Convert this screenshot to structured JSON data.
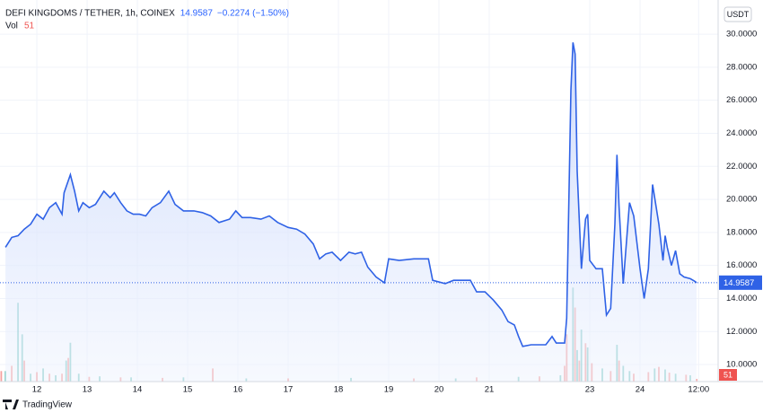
{
  "chart_data": {
    "type": "area",
    "title": "DEFI KINGDOMS / TETHER, 1h, COINEX",
    "change_label": "−0.2274 (−1.50%)",
    "currency": "USDT",
    "brand": "TradingView",
    "color": "#2f62e6",
    "fill": "#dbe5fd",
    "grid": true,
    "x": [
      -15,
      -12,
      -9,
      -6,
      -3,
      0,
      3,
      6,
      9,
      12,
      13,
      16,
      18,
      20,
      22,
      25,
      28,
      32,
      35,
      37,
      40,
      43,
      46,
      49,
      52,
      55,
      59,
      63,
      66,
      70,
      75,
      79,
      83,
      87,
      92,
      95,
      98,
      102,
      107,
      111,
      115,
      120,
      124,
      128,
      132,
      135,
      138,
      141,
      145,
      149,
      152,
      155,
      158,
      162,
      166,
      168,
      173,
      180,
      187,
      189,
      195,
      199,
      203,
      207,
      210,
      214,
      218,
      222,
      225,
      228,
      230,
      232,
      236,
      240,
      243,
      246,
      248,
      252,
      253,
      255,
      256,
      257,
      258,
      260,
      262,
      263,
      264,
      267,
      270,
      272,
      274,
      276,
      277,
      278,
      280,
      282,
      283,
      285,
      288,
      290,
      292,
      294,
      297,
      299,
      300,
      301,
      303,
      305,
      307,
      309,
      312,
      314,
      315
    ],
    "values": [
      17.1,
      17.7,
      17.8,
      18.2,
      18.5,
      19.1,
      18.8,
      19.5,
      19.8,
      19.1,
      20.4,
      21.5,
      20.5,
      19.3,
      19.8,
      19.5,
      19.7,
      20.5,
      20.1,
      20.4,
      19.8,
      19.3,
      19.1,
      19.1,
      19.0,
      19.5,
      19.8,
      20.5,
      19.7,
      19.3,
      19.3,
      19.2,
      19.0,
      18.6,
      18.8,
      19.3,
      18.9,
      18.9,
      18.8,
      19.0,
      18.6,
      18.3,
      18.2,
      17.9,
      17.3,
      16.4,
      16.7,
      16.8,
      16.3,
      16.8,
      16.7,
      16.8,
      15.9,
      15.3,
      14.95,
      16.4,
      16.3,
      16.4,
      16.4,
      15.1,
      14.9,
      15.1,
      15.1,
      15.1,
      14.4,
      14.4,
      13.9,
      13.3,
      12.6,
      12.4,
      11.7,
      11.1,
      11.2,
      11.2,
      11.2,
      11.7,
      11.3,
      11.3,
      12.8,
      26.6,
      29.5,
      28.8,
      21.7,
      15.8,
      18.8,
      19.1,
      16.3,
      15.8,
      15.8,
      13.0,
      13.4,
      18.5,
      22.7,
      19.6,
      14.9,
      18.2,
      19.8,
      19.0,
      15.8,
      14.0,
      15.8,
      20.9,
      18.5,
      16.3,
      17.8,
      17.1,
      16.0,
      16.9,
      15.5,
      15.3,
      15.2,
      15.05,
      14.9587
    ],
    "xlim": [
      -17.6,
      325.3
    ],
    "xticks": [
      {
        "value": 0,
        "label": "12"
      },
      {
        "value": 24,
        "label": "13"
      },
      {
        "value": 48,
        "label": "14"
      },
      {
        "value": 72,
        "label": "15"
      },
      {
        "value": 96,
        "label": "16"
      },
      {
        "value": 120,
        "label": "17"
      },
      {
        "value": 144,
        "label": "18"
      },
      {
        "value": 168,
        "label": "19"
      },
      {
        "value": 192,
        "label": "20"
      },
      {
        "value": 216,
        "label": "21"
      },
      {
        "value": 264,
        "label": "23"
      },
      {
        "value": 288,
        "label": "24"
      },
      {
        "value": 316,
        "label": "12:00"
      }
    ],
    "ylim": [
      8.97,
      32.07
    ],
    "yticks": [
      {
        "value": 10,
        "label": "10.0000"
      },
      {
        "value": 12,
        "label": "12.0000"
      },
      {
        "value": 14,
        "label": "14.0000"
      },
      {
        "value": 16,
        "label": "16.0000"
      },
      {
        "value": 18,
        "label": "18.0000"
      },
      {
        "value": 20,
        "label": "20.0000"
      },
      {
        "value": 22,
        "label": "22.0000"
      },
      {
        "value": 24,
        "label": "24.0000"
      },
      {
        "value": 26,
        "label": "26.0000"
      },
      {
        "value": 28,
        "label": "28.0000"
      },
      {
        "value": 30,
        "label": "30.0000"
      }
    ],
    "volume": {
      "label": "Vol",
      "vlim": [
        0,
        2000
      ],
      "up": {
        "color": "#26a69a",
        "x": [
          -15,
          -9,
          -7,
          -3,
          3,
          9,
          14,
          16,
          20,
          30,
          45,
          70,
          100,
          150,
          200,
          230,
          250,
          256,
          258,
          260,
          263,
          270,
          277,
          280,
          283,
          295,
          300,
          305,
          312
        ],
        "values": [
          200,
          1500,
          900,
          150,
          250,
          120,
          400,
          740,
          150,
          100,
          80,
          80,
          60,
          70,
          60,
          90,
          120,
          1790,
          600,
          990,
          650,
          250,
          700,
          300,
          200,
          250,
          230,
          150,
          120
        ]
      },
      "down": {
        "color": "#ef5350",
        "x": [
          -17,
          -12,
          -6,
          0,
          6,
          12,
          15,
          25,
          40,
          60,
          84,
          120,
          180,
          210,
          240,
          252,
          253,
          257,
          259,
          262,
          265,
          274,
          278,
          285,
          292,
          297,
          302,
          310,
          315
        ],
        "values": [
          200,
          300,
          400,
          180,
          150,
          150,
          450,
          90,
          80,
          70,
          250,
          60,
          60,
          80,
          100,
          300,
          900,
          1410,
          400,
          730,
          350,
          200,
          400,
          150,
          180,
          280,
          170,
          130,
          51
        ]
      }
    }
  }
}
